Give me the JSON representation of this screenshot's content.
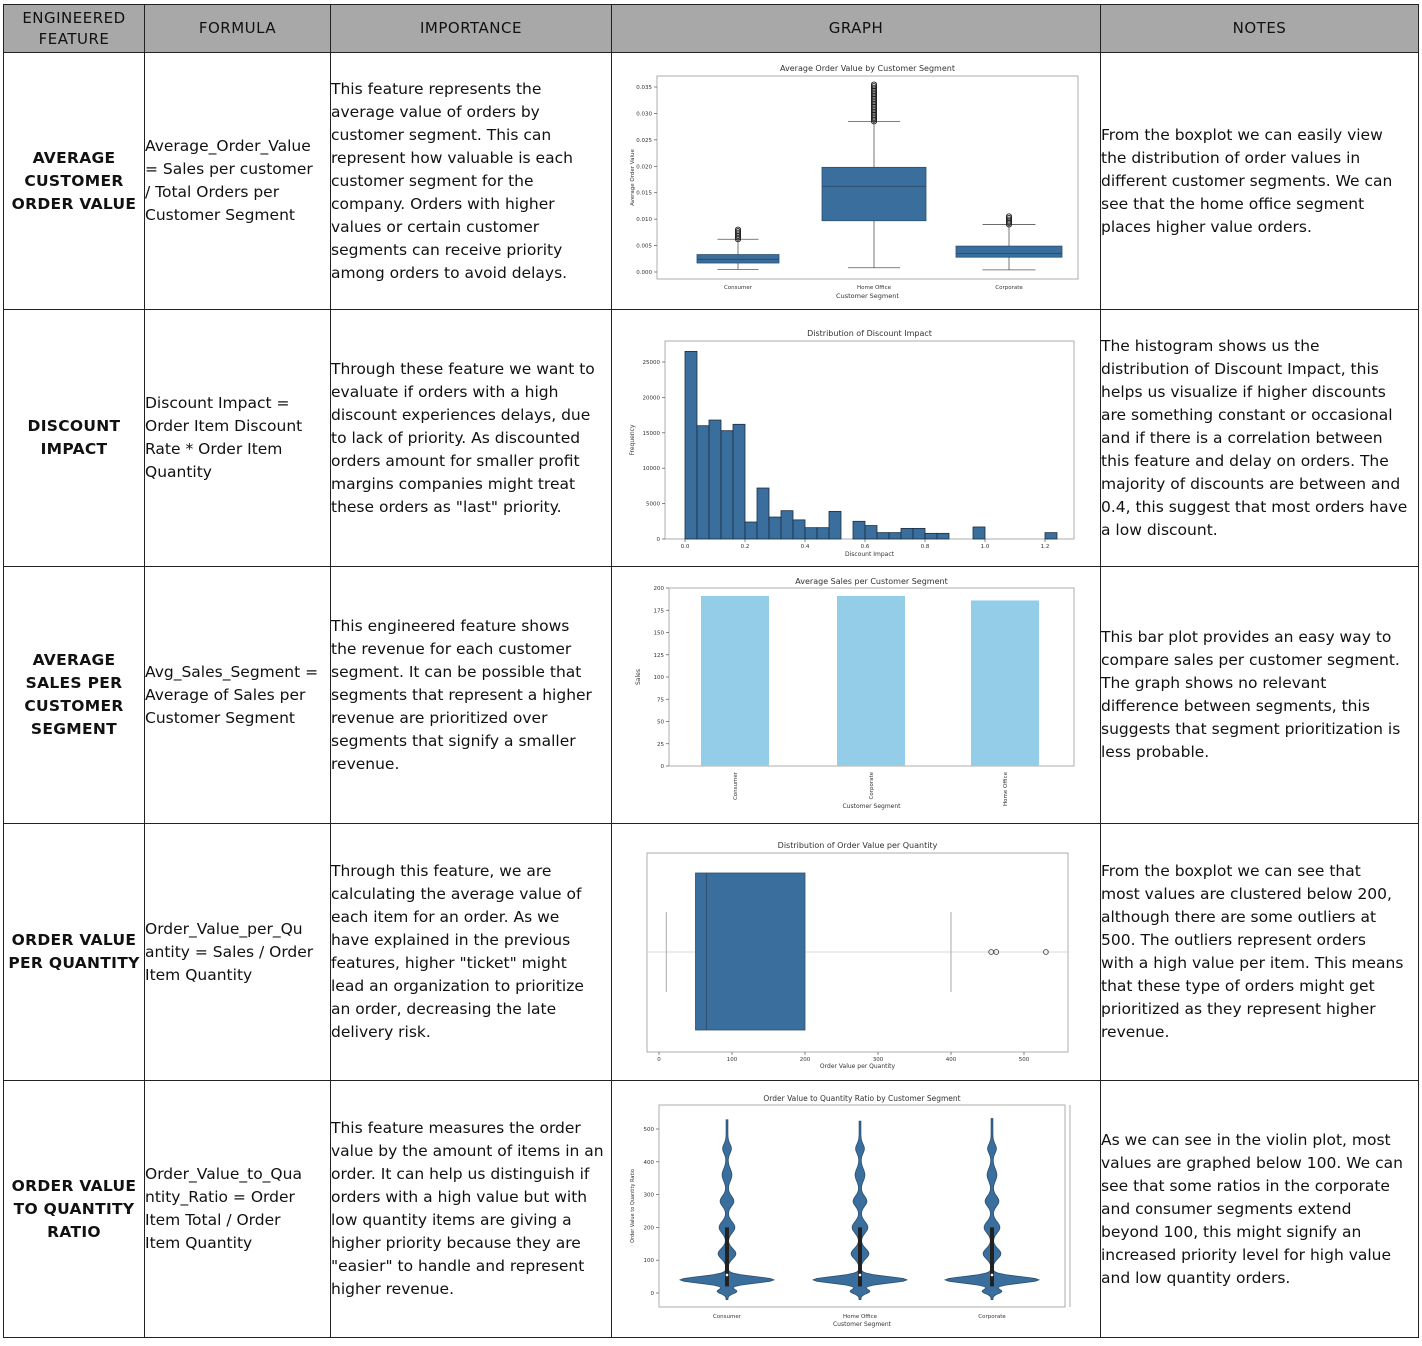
{
  "headers": {
    "feature": [
      "ENGINEERED",
      "FEATURE"
    ],
    "formula": "FORMULA",
    "importance": "IMPORTANCE",
    "graph": "GRAPH",
    "notes": "NOTES"
  },
  "rows": [
    {
      "feature": [
        "AVERAGE",
        "CUSTOMER",
        "ORDER VALUE"
      ],
      "formula": [
        "Average_Order_Value",
        "= Sales per customer",
        "/ Total Orders per",
        "Customer Segment"
      ],
      "importance": [
        "This feature represents the",
        "average value of orders by",
        "customer segment. This can",
        "represent how valuable is each",
        "customer segment for the",
        "company. Orders with higher",
        "values or certain customer",
        "segments can receive priority",
        "among orders to avoid delays."
      ],
      "notes": [
        "From the boxplot  we can easily view",
        "the distribution of order values in",
        "different customer segments. We can",
        "see that the home office segment",
        "places higher value orders."
      ]
    },
    {
      "feature": [
        "DISCOUNT",
        "IMPACT"
      ],
      "formula": [
        "Discount Impact =",
        "Order Item Discount",
        "Rate * Order Item",
        "Quantity"
      ],
      "importance": [
        "Through these feature we want to",
        "evaluate if orders with a high",
        "discount experiences delays, due",
        "to lack of priority. As discounted",
        "orders amount for smaller profit",
        "margins companies might treat",
        "these orders as \"last\" priority."
      ],
      "notes": [
        "The histogram shows us the",
        "distribution of Discount Impact, this",
        "helps us visualize if higher discounts",
        "are something constant or occasional",
        "and if there is a correlation between",
        "this feature and delay on orders. The",
        "majority of discounts are between and",
        "0.4, this suggest that most orders have",
        "a low discount."
      ]
    },
    {
      "feature": [
        "AVERAGE",
        "SALES PER",
        "CUSTOMER",
        "SEGMENT"
      ],
      "formula": [
        "Avg_Sales_Segment =",
        "Average of Sales per",
        "Customer Segment"
      ],
      "importance": [
        "This engineered feature shows",
        "the revenue for each customer",
        "segment. It can be possible that",
        "segments that represent a higher",
        "revenue are prioritized over",
        "segments that signify a smaller",
        "revenue."
      ],
      "notes": [
        "This bar plot provides an easy way to",
        "compare sales per customer segment.",
        "The graph shows no relevant",
        "difference between segments, this",
        "suggests that segment prioritization is",
        "less  probable."
      ]
    },
    {
      "feature": [
        "ORDER VALUE",
        "PER QUANTITY"
      ],
      "formula": [
        "Order_Value_per_Qu",
        "antity = Sales / Order",
        "Item Quantity"
      ],
      "importance": [
        "Through this feature, we are",
        "calculating the average value of",
        "each item for an order. As we",
        "have explained in the previous",
        "features,  higher \"ticket\" might",
        "lead an organization to prioritize",
        "an order, decreasing the late",
        "delivery risk."
      ],
      "notes": [
        "From the boxplot we can see that",
        "most values are clustered below 200,",
        "although there are some outliers at",
        "500. The outliers represent orders",
        "with a high value per item. This means",
        "that these type of orders might get",
        "prioritized as they represent higher",
        "revenue."
      ]
    },
    {
      "feature": [
        "ORDER VALUE",
        "TO QUANTITY",
        "RATIO"
      ],
      "formula": [
        "Order_Value_to_Qua",
        "ntity_Ratio = Order",
        "Item Total / Order",
        "Item Quantity"
      ],
      "importance": [
        "This feature measures the order",
        "value by the amount of items in an",
        "order. It can help us distinguish if",
        "orders with a high value but with",
        "low quantity items are giving a",
        "higher priority because they are",
        "\"easier\" to handle and represent",
        "higher revenue."
      ],
      "notes": [
        "As we can see in the violin plot, most",
        "values are graphed below 100. We can",
        "see that some ratios in the corporate",
        "and consumer segments extend",
        "beyond 100, this might signify an",
        "increased priority level for high value",
        "and low quantity orders."
      ]
    }
  ],
  "colors": {
    "header_bg": "#a8a8a8",
    "plot_blue": "#3a6e9c",
    "bar_light_blue": "#93cde8"
  },
  "chart_data": [
    {
      "type": "box",
      "title": "Average Order Value by Customer Segment",
      "xlabel": "Customer Segment",
      "ylabel": "Average Order Value",
      "categories": [
        "Consumer",
        "Home Office",
        "Corporate"
      ],
      "yticks": [
        "0.000",
        "0.005",
        "0.010",
        "0.015",
        "0.020",
        "0.025",
        "0.030",
        "0.035"
      ],
      "ylim": [
        0,
        0.036
      ],
      "boxes": [
        {
          "whisker_low": 0.0005,
          "q1": 0.0017,
          "median": 0.0024,
          "q3": 0.0033,
          "whisker_high": 0.0062,
          "outlier_max": 0.0082
        },
        {
          "whisker_low": 0.0008,
          "q1": 0.0097,
          "median": 0.0162,
          "q3": 0.0198,
          "whisker_high": 0.0285,
          "outlier_max": 0.0355
        },
        {
          "whisker_low": 0.0004,
          "q1": 0.0028,
          "median": 0.0035,
          "q3": 0.0049,
          "whisker_high": 0.009,
          "outlier_max": 0.0108
        }
      ]
    },
    {
      "type": "histogram",
      "title": "Distribution of Discount Impact",
      "xlabel": "Discount Impact",
      "ylabel": "Frequency",
      "xticks": [
        "0.0",
        "0.2",
        "0.4",
        "0.6",
        "0.8",
        "1.0",
        "1.2"
      ],
      "yticks": [
        "0",
        "5000",
        "10000",
        "15000",
        "20000",
        "25000"
      ],
      "xlim": [
        0,
        1.25
      ],
      "ylim": [
        0,
        27000
      ],
      "bin_width": 0.04,
      "bins": [
        {
          "x": 0.0,
          "count": 26500
        },
        {
          "x": 0.04,
          "count": 16000
        },
        {
          "x": 0.08,
          "count": 16800
        },
        {
          "x": 0.12,
          "count": 15300
        },
        {
          "x": 0.16,
          "count": 16200
        },
        {
          "x": 0.2,
          "count": 2400
        },
        {
          "x": 0.24,
          "count": 7200
        },
        {
          "x": 0.28,
          "count": 3100
        },
        {
          "x": 0.32,
          "count": 4000
        },
        {
          "x": 0.36,
          "count": 2700
        },
        {
          "x": 0.4,
          "count": 1600
        },
        {
          "x": 0.44,
          "count": 1600
        },
        {
          "x": 0.48,
          "count": 3900
        },
        {
          "x": 0.56,
          "count": 2500
        },
        {
          "x": 0.6,
          "count": 1900
        },
        {
          "x": 0.64,
          "count": 900
        },
        {
          "x": 0.68,
          "count": 900
        },
        {
          "x": 0.72,
          "count": 1500
        },
        {
          "x": 0.76,
          "count": 1500
        },
        {
          "x": 0.8,
          "count": 800
        },
        {
          "x": 0.84,
          "count": 800
        },
        {
          "x": 0.96,
          "count": 1700
        },
        {
          "x": 1.2,
          "count": 900
        }
      ]
    },
    {
      "type": "bar",
      "title": "Average Sales per Customer Segment",
      "xlabel": "Customer Segment",
      "ylabel": "Sales",
      "categories": [
        "Consumer",
        "Corporate",
        "Home Office"
      ],
      "values": [
        191,
        191,
        186
      ],
      "yticks": [
        "0",
        "25",
        "50",
        "75",
        "100",
        "125",
        "150",
        "175",
        "200"
      ],
      "ylim": [
        0,
        200
      ]
    },
    {
      "type": "box",
      "orientation": "horizontal",
      "title": "Distribution of Order Value per Quantity",
      "xlabel": "Order Value per Quantity",
      "xticks": [
        "0",
        "100",
        "200",
        "300",
        "400",
        "500"
      ],
      "xlim": [
        -15,
        545
      ],
      "box": {
        "whisker_low": 10,
        "q1": 50,
        "median": 65,
        "q3": 200,
        "whisker_high": 400
      },
      "outliers": [
        455,
        462,
        530
      ]
    },
    {
      "type": "violin",
      "title": "Order Value to Quantity Ratio by Customer Segment",
      "xlabel": "Customer Segment",
      "ylabel": "Order Value to Quantity Ratio",
      "categories": [
        "Consumer",
        "Home Office",
        "Corporate"
      ],
      "yticks": [
        "0",
        "100",
        "200",
        "300",
        "400",
        "500"
      ],
      "ylim": [
        -40,
        560
      ],
      "violin_max": [
        530,
        525,
        535
      ]
    }
  ]
}
